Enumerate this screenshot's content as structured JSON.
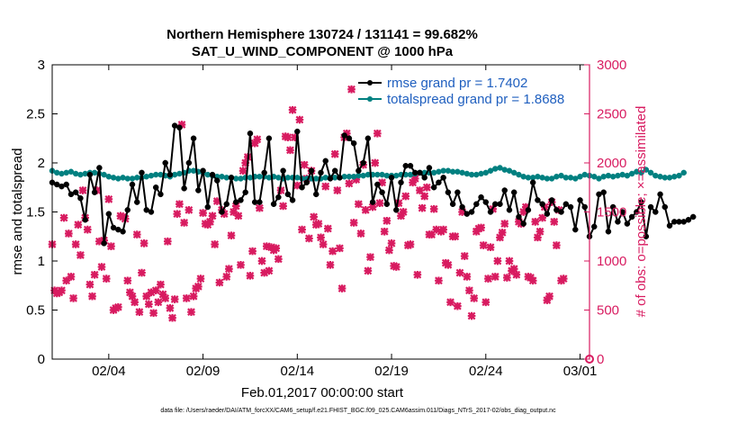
{
  "chart_data": {
    "type": "line",
    "title": "Northern Hemisphere 130724 / 131141 = 99.682%",
    "subtitle": "SAT_U_WIND_COMPONENT @ 1000 hPa",
    "xlabel": "Feb.01,2017 00:00:00 start",
    "ylabel_left": "rmse and totalspread",
    "ylabel_right": "# of obs: o=possible; ×=assimilated",
    "xlim": [
      1,
      29.5
    ],
    "ylim_left": [
      0,
      3
    ],
    "ylim_right": [
      0,
      3000
    ],
    "x_ticks": [
      4,
      9,
      14,
      19,
      24,
      29
    ],
    "x_tick_labels": [
      "02/04",
      "02/09",
      "02/14",
      "02/19",
      "02/24",
      "03/01"
    ],
    "y_left_ticks": [
      0,
      0.5,
      1,
      1.5,
      2,
      2.5,
      3
    ],
    "y_left_tick_labels": [
      "0",
      "0.5",
      "1",
      "1.5",
      "2",
      "2.5",
      "3"
    ],
    "y_right_ticks": [
      0,
      500,
      1000,
      1500,
      2000,
      2500,
      3000
    ],
    "y_right_tick_labels": [
      "0",
      "500",
      "1000",
      "1500",
      "2000",
      "2500",
      "3000"
    ],
    "x_start": 1,
    "x_step": 0.25,
    "series": [
      {
        "name": "rmse grand pr = 1.7402",
        "color": "#000000",
        "axis": "left",
        "values": [
          1.8,
          1.78,
          1.76,
          1.78,
          1.68,
          1.7,
          1.64,
          1.42,
          1.88,
          1.7,
          1.95,
          1.18,
          1.48,
          1.34,
          1.32,
          1.3,
          1.52,
          1.78,
          1.6,
          1.9,
          1.52,
          1.5,
          1.75,
          1.68,
          2.0,
          1.88,
          2.38,
          2.36,
          1.74,
          2.0,
          2.25,
          1.72,
          1.92,
          1.55,
          1.88,
          1.82,
          1.5,
          1.58,
          1.85,
          1.6,
          1.62,
          1.7,
          2.3,
          1.6,
          1.6,
          1.9,
          2.25,
          1.58,
          1.65,
          1.92,
          1.68,
          1.62,
          2.32,
          1.75,
          1.8,
          1.92,
          1.68,
          1.9,
          2.02,
          1.84,
          1.92,
          1.85,
          2.28,
          2.25,
          2.2,
          1.92,
          2.0,
          2.25,
          1.6,
          1.78,
          1.7,
          1.58,
          1.85,
          1.52,
          1.8,
          1.97,
          1.97,
          1.9,
          1.9,
          1.85,
          1.95,
          1.75,
          1.8,
          1.85,
          1.7,
          1.58,
          1.7,
          1.55,
          1.48,
          1.5,
          1.58,
          1.65,
          1.6,
          1.5,
          1.58,
          1.58,
          1.72,
          1.52,
          1.7,
          1.45,
          1.38,
          1.52,
          1.8,
          1.62,
          1.58,
          1.48,
          1.62,
          1.52,
          1.5,
          1.58,
          1.55,
          1.32,
          1.62,
          1.55,
          1.25,
          1.35,
          1.68,
          1.7,
          1.3,
          1.55,
          1.4,
          1.5,
          1.38,
          1.45,
          1.5,
          1.6,
          1.25,
          1.55,
          1.5,
          1.68,
          1.55,
          1.36,
          1.4,
          1.4,
          1.4,
          1.42,
          1.45
        ]
      },
      {
        "name": "totalspread grand pr = 1.8688",
        "color": "#008080",
        "axis": "left",
        "values": [
          1.92,
          1.9,
          1.89,
          1.9,
          1.91,
          1.89,
          1.88,
          1.89,
          1.9,
          1.9,
          1.89,
          1.88,
          1.86,
          1.85,
          1.84,
          1.85,
          1.84,
          1.84,
          1.85,
          1.85,
          1.86,
          1.87,
          1.88,
          1.88,
          1.87,
          1.86,
          1.88,
          1.89,
          1.9,
          1.92,
          1.92,
          1.91,
          1.9,
          1.88,
          1.87,
          1.86,
          1.86,
          1.85,
          1.85,
          1.84,
          1.84,
          1.85,
          1.85,
          1.86,
          1.86,
          1.86,
          1.85,
          1.86,
          1.85,
          1.84,
          1.85,
          1.85,
          1.85,
          1.84,
          1.84,
          1.84,
          1.84,
          1.84,
          1.85,
          1.85,
          1.85,
          1.85,
          1.86,
          1.86,
          1.86,
          1.87,
          1.87,
          1.88,
          1.88,
          1.88,
          1.88,
          1.87,
          1.87,
          1.87,
          1.88,
          1.88,
          1.88,
          1.89,
          1.9,
          1.9,
          1.9,
          1.9,
          1.91,
          1.92,
          1.92,
          1.91,
          1.91,
          1.9,
          1.89,
          1.88,
          1.88,
          1.89,
          1.9,
          1.92,
          1.94,
          1.95,
          1.93,
          1.92,
          1.9,
          1.88,
          1.86,
          1.85,
          1.85,
          1.86,
          1.85,
          1.84,
          1.84,
          1.86,
          1.87,
          1.85,
          1.85,
          1.84,
          1.86,
          1.88,
          1.87,
          1.86,
          1.84,
          1.86,
          1.87,
          1.86,
          1.87,
          1.88,
          1.87,
          1.89,
          1.91,
          1.9,
          1.93,
          1.9,
          1.87,
          1.86,
          1.85,
          1.85,
          1.86,
          1.87,
          1.9
        ]
      },
      {
        "name": "# obs assimilated",
        "color": "#d81b60",
        "axis": "right",
        "values": [
          1170,
          700,
          670,
          680,
          700,
          1440,
          800,
          1280,
          840,
          620,
          1170,
          1370,
          1060,
          1720,
          1440,
          1320,
          760,
          640,
          860,
          1720,
          1200,
          940,
          1210,
          820,
          1630,
          1150,
          500,
          520,
          530,
          1460,
          1450,
          1430,
          800,
          680,
          640,
          580,
          1270,
          480,
          880,
          1180,
          640,
          560,
          680,
          470,
          700,
          580,
          760,
          660,
          620,
          1200,
          520,
          420,
          610,
          1480,
          1580,
          2390,
          1390,
          620,
          1520,
          480,
          640,
          720,
          740,
          820,
          1490,
          1380,
          1370,
          1400,
          1460,
          1170,
          1610,
          780,
          1520,
          1480,
          840,
          920,
          1260,
          1500,
          1560,
          1460,
          960,
          1920,
          2000,
          2060,
          850,
          1100,
          2200,
          2240,
          1540,
          1000,
          880,
          1150,
          900,
          1140,
          1110,
          1130,
          1020,
          1720,
          1560,
          2270,
          2260,
          2130,
          2540,
          2260,
          1770,
          2440,
          1320,
          1980,
          1840,
          1230,
          1920,
          1450,
          1370,
          1380,
          1240,
          1170,
          1760,
          1330,
          960,
          1100,
          2090,
          1720,
          1130,
          720,
          2260,
          2300,
          1790,
          2750,
          1390,
          1830,
          1580,
          1280,
          1980,
          1520,
          900,
          1040,
          1550,
          2000,
          2300,
          1590,
          1800,
          1300,
          1410,
          1110,
          1180,
          950,
          940,
          1590,
          1460,
          1500,
          1660,
          1160,
          1170,
          1800,
          1840,
          860,
          1720,
          1540,
          1660,
          1750,
          1270,
          1270,
          1530,
          1320,
          800,
          1300,
          1320,
          980,
          960,
          580,
          1250,
          1250,
          540,
          880,
          1500,
          1050,
          840,
          700,
          440,
          620,
          1300,
          1330,
          1340,
          1160,
          580,
          820,
          1140,
          1530,
          840,
          1000,
          1240,
          1290,
          1380,
          830,
          1000,
          900,
          920,
          860,
          1400,
          1380,
          1500,
          1550,
          840,
          830,
          800,
          1400,
          1240,
          1300,
          1440,
          1550,
          600,
          640,
          1600,
          1400,
          1160,
          1520,
          800,
          820,
          0
        ],
        "_note": "markers only"
      }
    ],
    "obs_x_start": 1,
    "obs_x_step": 0.125,
    "obs_end_marker": {
      "x": 29.5,
      "value": 0,
      "label": "o"
    },
    "legend": [
      "rmse grand pr = 1.7402",
      "totalspread grand pr = 1.8688"
    ],
    "legend_location": "top-right",
    "legend_text_color": "#1f5fbf",
    "footer": "data file: /Users/raeder/DAI/ATM_forcXX/CAM6_setup/f.e21.FHIST_BGC.f09_025.CAM6assim.011/Diags_NTrS_2017-02/obs_diag_output.nc",
    "colors": {
      "axis": "#000000",
      "right_axis": "#d81b60"
    }
  }
}
